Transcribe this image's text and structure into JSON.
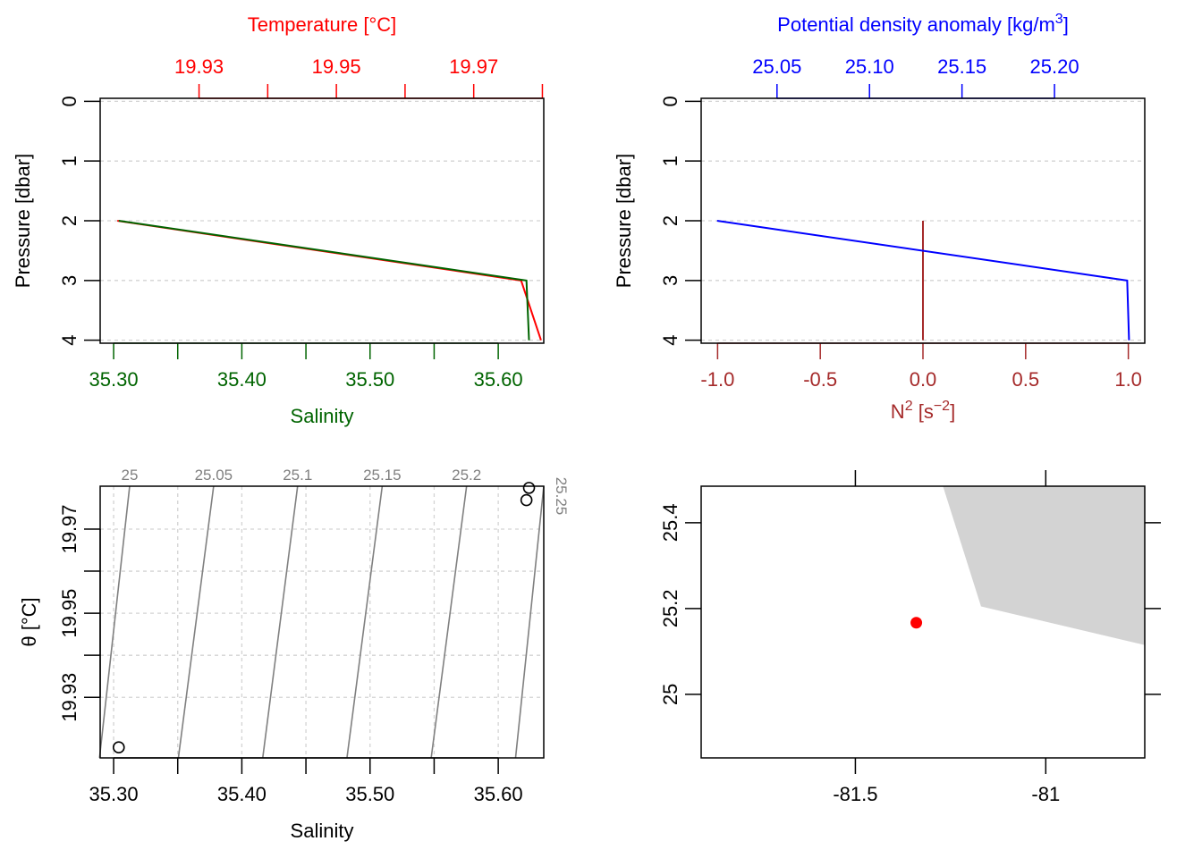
{
  "colors": {
    "temperature": "#ff0000",
    "salinity": "#006400",
    "density": "#0000ff",
    "n2": "#a52a2a",
    "isopycnal": "#808080",
    "land": "#d3d3d3",
    "station": "#ff0000",
    "axis": "#000000",
    "grid": "#d3d3d3"
  },
  "chart_data": [
    {
      "type": "line",
      "panel": "temperature-salinity-profile",
      "ylabel": "Pressure [dbar]",
      "yticks": [
        "0",
        "1",
        "2",
        "3",
        "4"
      ],
      "ylim": [
        4.05,
        -0.05
      ],
      "top_axis": {
        "label": "Temperature [°C]",
        "tick_labels": [
          "19.93",
          "19.95",
          "19.97"
        ],
        "label_values": [
          19.93,
          19.95,
          19.97
        ],
        "minor_values": [
          19.94,
          19.96,
          19.98
        ],
        "xlim": [
          19.9156,
          19.9802
        ]
      },
      "bottom_axis": {
        "label": "Salinity",
        "tick_labels": [
          "35.30",
          "35.40",
          "35.50",
          "35.60"
        ],
        "label_values": [
          35.3,
          35.4,
          35.5,
          35.6
        ],
        "minor_values": [
          35.35,
          35.45,
          35.55
        ],
        "xlim": [
          35.2895,
          35.6355
        ]
      },
      "series": [
        {
          "name": "Temperature [°C]",
          "axis": "top",
          "x": [
            19.9181,
            19.9769,
            19.9798
          ],
          "y": [
            2,
            3,
            4
          ]
        },
        {
          "name": "Salinity",
          "axis": "bottom",
          "x": [
            35.304,
            35.622,
            35.624
          ],
          "y": [
            2,
            3,
            4
          ]
        }
      ]
    },
    {
      "type": "line",
      "panel": "density-n2-profile",
      "ylabel": "Pressure [dbar]",
      "yticks": [
        "0",
        "1",
        "2",
        "3",
        "4"
      ],
      "ylim": [
        4.05,
        -0.05
      ],
      "top_axis": {
        "label": "Potential density anomaly [kg/m",
        "label_sup": "3",
        "label_end": "]",
        "tick_labels": [
          "25.05",
          "25.10",
          "25.15",
          "25.20"
        ],
        "label_values": [
          25.05,
          25.1,
          25.15,
          25.2
        ],
        "xlim": [
          25.009,
          25.2488
        ]
      },
      "bottom_axis": {
        "label": "N",
        "label_sup": "2",
        "label_mid": " [s",
        "label_sup2": "−2",
        "label_end": "]",
        "tick_labels": [
          "-1.0",
          "-0.5",
          "0.0",
          "0.5",
          "1.0"
        ],
        "label_values": [
          -1.0,
          -0.5,
          0.0,
          0.5,
          1.0
        ],
        "xlim": [
          -1.08,
          1.08
        ]
      },
      "series": [
        {
          "name": "Potential density anomaly",
          "axis": "top",
          "x": [
            25.0176,
            25.2393,
            25.2403
          ],
          "y": [
            2,
            3,
            4
          ]
        },
        {
          "name": "N2",
          "axis": "bottom",
          "x": [
            0.0,
            0.0
          ],
          "y": [
            2,
            4
          ]
        }
      ]
    },
    {
      "type": "scatter",
      "panel": "ts-diagram",
      "xlabel": "Salinity",
      "ylabel": "θ [°C]",
      "xlim": [
        35.2895,
        35.6355
      ],
      "ylim": [
        19.9156,
        19.9802
      ],
      "x_tick_labels": [
        "35.30",
        "35.40",
        "35.50",
        "35.60"
      ],
      "x_label_values": [
        35.3,
        35.4,
        35.5,
        35.6
      ],
      "x_minor_values": [
        35.35,
        35.45,
        35.55
      ],
      "y_tick_labels": [
        "19.93",
        "19.95",
        "19.97"
      ],
      "y_label_values": [
        19.93,
        19.95,
        19.97
      ],
      "y_minor_values": [
        19.94,
        19.96
      ],
      "points": [
        {
          "x": 35.304,
          "y": 19.9181
        },
        {
          "x": 35.622,
          "y": 19.9769
        },
        {
          "x": 35.624,
          "y": 19.9798
        }
      ],
      "isopycnals": [
        {
          "label": "25",
          "x_top": 35.3125,
          "x_bottom": 35.289
        },
        {
          "label": "25.05",
          "x_top": 35.378,
          "x_bottom": 35.3505
        },
        {
          "label": "25.1",
          "x_top": 35.4435,
          "x_bottom": 35.4163
        },
        {
          "label": "25.15",
          "x_top": 35.5095,
          "x_bottom": 35.482
        },
        {
          "label": "25.2",
          "x_top": 35.5753,
          "x_bottom": 35.5477
        },
        {
          "label": "25.25",
          "x_top": 35.6355,
          "x_bottom": 35.6135
        }
      ]
    },
    {
      "type": "map",
      "panel": "station-map",
      "xlim": [
        -81.905,
        -80.74
      ],
      "ylim": [
        24.852,
        25.485
      ],
      "x_tick_labels": [
        "-81.5",
        "-81"
      ],
      "x_label_values": [
        -81.5,
        -81.0
      ],
      "y_tick_labels": [
        "25",
        "25.2",
        "25.4"
      ],
      "y_label_values": [
        25.0,
        25.2,
        25.4
      ],
      "station": {
        "lon": -81.34,
        "lat": 25.167
      },
      "coastline": [
        [
          -81.27,
          25.485
        ],
        [
          -81.17,
          25.205
        ],
        [
          -80.74,
          25.115
        ],
        [
          -80.74,
          25.485
        ]
      ]
    }
  ]
}
